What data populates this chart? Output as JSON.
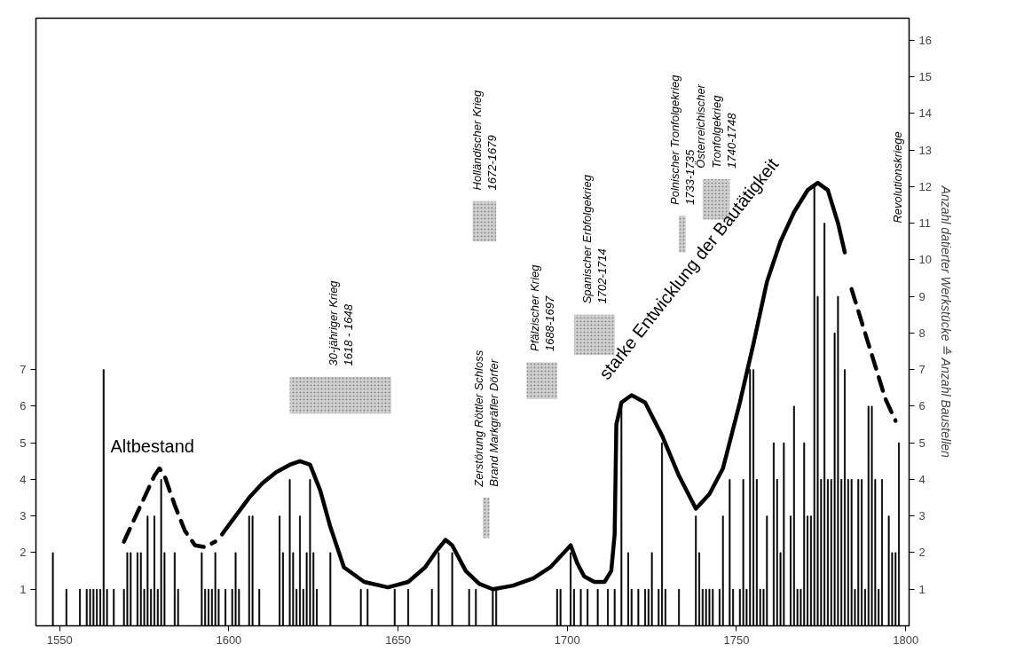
{
  "chart_data": {
    "type": "bar",
    "y2label": "Anzahl datierter Werkstücke ≙ Anzahl Baustellen",
    "xlim": [
      1543,
      1801
    ],
    "xticks": [
      1550,
      1600,
      1650,
      1700,
      1750,
      1800
    ],
    "ylim": [
      0,
      16.6
    ],
    "yticks": [
      1,
      2,
      3,
      4,
      5,
      6,
      7
    ],
    "y2lim": [
      0,
      16.6
    ],
    "y2ticks": [
      1,
      2,
      3,
      4,
      5,
      6,
      7,
      8,
      9,
      10,
      11,
      12,
      13,
      14,
      15,
      16
    ],
    "series": [
      {
        "color": "#000000",
        "x": [
          1548,
          1552,
          1556,
          1558,
          1559,
          1560,
          1561,
          1562,
          1563,
          1564,
          1566,
          1569,
          1570,
          1571,
          1573,
          1574,
          1575,
          1576,
          1577,
          1578,
          1579,
          1580,
          1581,
          1584,
          1585,
          1592,
          1593,
          1594,
          1595,
          1596,
          1597,
          1599,
          1601,
          1602,
          1603,
          1606,
          1607,
          1609,
          1615,
          1616,
          1618,
          1619,
          1620,
          1621,
          1622,
          1623,
          1624,
          1625,
          1626,
          1630,
          1639,
          1641,
          1649,
          1653,
          1660,
          1662,
          1666,
          1671,
          1673,
          1678,
          1679,
          1697,
          1698,
          1701,
          1702,
          1704,
          1706,
          1709,
          1712,
          1714,
          1716,
          1718,
          1719,
          1721,
          1723,
          1724,
          1725,
          1727,
          1728,
          1729,
          1733,
          1738,
          1739,
          1740,
          1741,
          1742,
          1743,
          1745,
          1746,
          1748,
          1749,
          1751,
          1752,
          1753,
          1754,
          1755,
          1756,
          1757,
          1758,
          1759,
          1761,
          1762,
          1763,
          1764,
          1766,
          1767,
          1768,
          1769,
          1770,
          1771,
          1772,
          1773,
          1774,
          1775,
          1776,
          1777,
          1778,
          1779,
          1780,
          1781,
          1782,
          1783,
          1784,
          1785,
          1786,
          1787,
          1788,
          1789,
          1790,
          1791,
          1792,
          1793,
          1795,
          1796,
          1797,
          1798
        ],
        "values": [
          2,
          1,
          1,
          1,
          1,
          1,
          1,
          1,
          7,
          1,
          1,
          1,
          2,
          2,
          2,
          2,
          1,
          3,
          1,
          3,
          1,
          4,
          2,
          2,
          1,
          2,
          1,
          1,
          1,
          2,
          1,
          1,
          1,
          2,
          1,
          3,
          3,
          1,
          3,
          2,
          4,
          2,
          1,
          3,
          1,
          2,
          4,
          2,
          1,
          2,
          1,
          1,
          1,
          1,
          1,
          2,
          2,
          1,
          1,
          1,
          1,
          1,
          1,
          2,
          1,
          1,
          1,
          1,
          1,
          1,
          6,
          2,
          1,
          1,
          1,
          1,
          2,
          1,
          5,
          1,
          1,
          3,
          2,
          1,
          1,
          1,
          1,
          1,
          3,
          4,
          1,
          1,
          4,
          1,
          7,
          7,
          4,
          1,
          1,
          3,
          5,
          4,
          2,
          5,
          3,
          6,
          1,
          1,
          5,
          3,
          3,
          12,
          9,
          4,
          11,
          4,
          4,
          8,
          9,
          4,
          7,
          4,
          4,
          1,
          4,
          4,
          1,
          6,
          6,
          4,
          1,
          4,
          3,
          2,
          2,
          5
        ]
      },
      {
        "type": "line",
        "line_style": "dashed",
        "color": "#000000",
        "x": [
          1569,
          1572,
          1575,
          1578,
          1579.5,
          1581,
          1584,
          1587,
          1590,
          1593,
          1596
        ],
        "values": [
          2.3,
          2.9,
          3.5,
          4.1,
          4.3,
          4.1,
          3.3,
          2.6,
          2.2,
          2.15,
          2.3
        ]
      },
      {
        "type": "line",
        "line_style": "solid",
        "color": "#000000",
        "x": [
          1598,
          1602,
          1606,
          1610,
          1614,
          1618,
          1621,
          1624,
          1627,
          1630,
          1634,
          1640,
          1647,
          1653,
          1658,
          1661,
          1664,
          1666,
          1670,
          1674,
          1678,
          1684,
          1690,
          1695,
          1699,
          1701,
          1703,
          1705,
          1708,
          1711,
          1713,
          1714,
          1714.5,
          1716,
          1719,
          1723,
          1728,
          1733,
          1738,
          1742,
          1746,
          1751,
          1755,
          1759,
          1763,
          1767,
          1771,
          1774,
          1777,
          1780,
          1782
        ],
        "values": [
          2.5,
          3.0,
          3.5,
          3.9,
          4.2,
          4.4,
          4.5,
          4.4,
          3.7,
          2.7,
          1.6,
          1.2,
          1.05,
          1.2,
          1.6,
          2.0,
          2.35,
          2.2,
          1.5,
          1.15,
          1.0,
          1.1,
          1.3,
          1.6,
          2.0,
          2.2,
          1.7,
          1.35,
          1.2,
          1.2,
          1.5,
          2.5,
          5.5,
          6.1,
          6.3,
          6.1,
          5.2,
          4.1,
          3.2,
          3.6,
          4.3,
          6.1,
          7.7,
          9.4,
          10.5,
          11.3,
          11.9,
          12.1,
          11.9,
          11.0,
          10.2
        ]
      },
      {
        "type": "line",
        "line_style": "dashed",
        "color": "#000000",
        "x": [
          1784,
          1787,
          1791,
          1794,
          1797
        ],
        "values": [
          9.2,
          8.3,
          7.1,
          6.2,
          5.6
        ]
      }
    ],
    "bands": [
      {
        "axis": "x",
        "from": 1618,
        "to": 1648,
        "label": "30-jähriger Krieg\n1618 - 1648",
        "color": "#d0d0d0"
      },
      {
        "axis": "x",
        "from": 1675,
        "to": 1677,
        "label": "Zerstörung Röttler Schloss\nBrand Markgräfler Dörfer",
        "color": "#d0d0d0"
      },
      {
        "axis": "x",
        "from": 1672,
        "to": 1679,
        "label": "Holländischer Krieg\n1672-1679",
        "color": "#d0d0d0"
      },
      {
        "axis": "x",
        "from": 1688,
        "to": 1697,
        "label": "Pfälzischer Krieg\n1688-1697",
        "color": "#d0d0d0"
      },
      {
        "axis": "x",
        "from": 1702,
        "to": 1714,
        "label": "Spanischer Erbfolgekrieg\n1702-1714",
        "color": "#d0d0d0"
      },
      {
        "axis": "x",
        "from": 1733,
        "to": 1735,
        "label": "Polnischer Tronfolgekrieg\n1733-1735",
        "color": "#d0d0d0"
      },
      {
        "axis": "x",
        "from": 1740,
        "to": 1748,
        "label": "Österreichischer\nTronfolgekrieg\n1740-1748",
        "color": "#d0d0d0"
      }
    ],
    "annotations": [
      "Altbestand",
      "starke Entwicklung der Bautätigkeit",
      "Revolutionskriege"
    ]
  }
}
